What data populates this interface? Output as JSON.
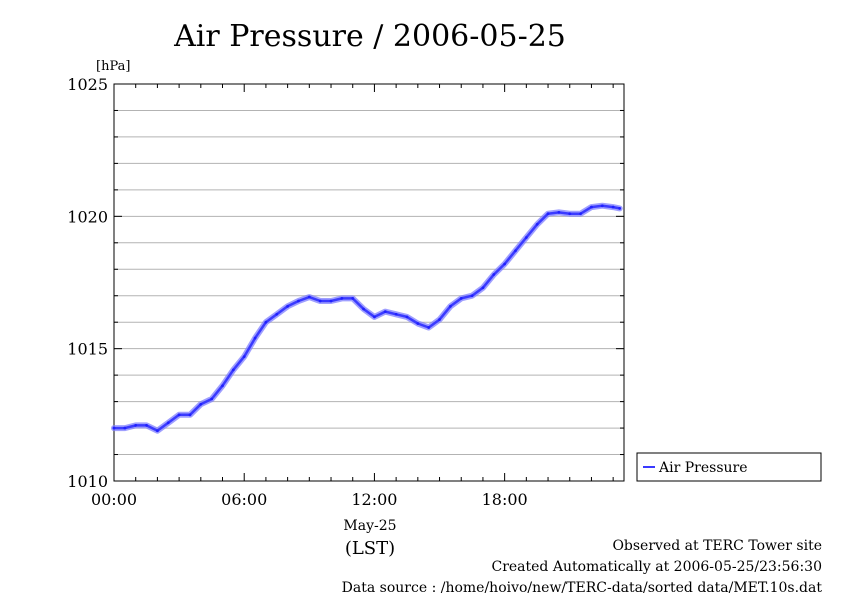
{
  "chart_data": {
    "type": "line",
    "title": "Air Pressure / 2006-05-25",
    "ylabel": "[hPa]",
    "xlabel_date": "May-25",
    "xlabel_unit": "(LST)",
    "x_unit": "hours",
    "xlim": [
      0,
      23.5
    ],
    "ylim": [
      1010,
      1025
    ],
    "x_ticks": [
      {
        "value": 0,
        "label": "00:00"
      },
      {
        "value": 6,
        "label": "06:00"
      },
      {
        "value": 12,
        "label": "12:00"
      },
      {
        "value": 18,
        "label": "18:00"
      }
    ],
    "y_ticks": [
      {
        "value": 1010,
        "label": "1010"
      },
      {
        "value": 1015,
        "label": "1015"
      },
      {
        "value": 1020,
        "label": "1020"
      },
      {
        "value": 1025,
        "label": "1025"
      }
    ],
    "grid": true,
    "legend_position": "right",
    "series": [
      {
        "name": "Air Pressure",
        "color": "#3a3aff",
        "x": [
          0,
          0.5,
          1,
          1.5,
          2,
          2.5,
          3,
          3.5,
          4,
          4.5,
          5,
          5.5,
          6,
          6.5,
          7,
          7.5,
          8,
          8.5,
          9,
          9.5,
          10,
          10.5,
          11,
          11.5,
          12,
          12.5,
          13,
          13.5,
          14,
          14.5,
          15,
          15.5,
          16,
          16.5,
          17,
          17.5,
          18,
          18.5,
          19,
          19.5,
          20,
          20.5,
          21,
          21.5,
          22,
          22.5,
          23,
          23.3
        ],
        "y": [
          1012.0,
          1012.0,
          1012.1,
          1012.1,
          1011.9,
          1012.2,
          1012.5,
          1012.5,
          1012.9,
          1013.1,
          1013.6,
          1014.2,
          1014.7,
          1015.4,
          1016.0,
          1016.3,
          1016.6,
          1016.8,
          1016.95,
          1016.8,
          1016.8,
          1016.9,
          1016.9,
          1016.5,
          1016.2,
          1016.4,
          1016.3,
          1016.2,
          1015.95,
          1015.8,
          1016.1,
          1016.6,
          1016.9,
          1017.0,
          1017.3,
          1017.8,
          1018.2,
          1018.7,
          1019.2,
          1019.7,
          1020.1,
          1020.15,
          1020.1,
          1020.1,
          1020.35,
          1020.4,
          1020.35,
          1020.3
        ]
      }
    ]
  },
  "footer": {
    "line1": "Observed at TERC Tower site",
    "line2": "Created Automatically at 2006-05-25/23:56:30",
    "line3": "Data source : /home/hoivo/new/TERC-data/sorted data/MET.10s.dat"
  }
}
